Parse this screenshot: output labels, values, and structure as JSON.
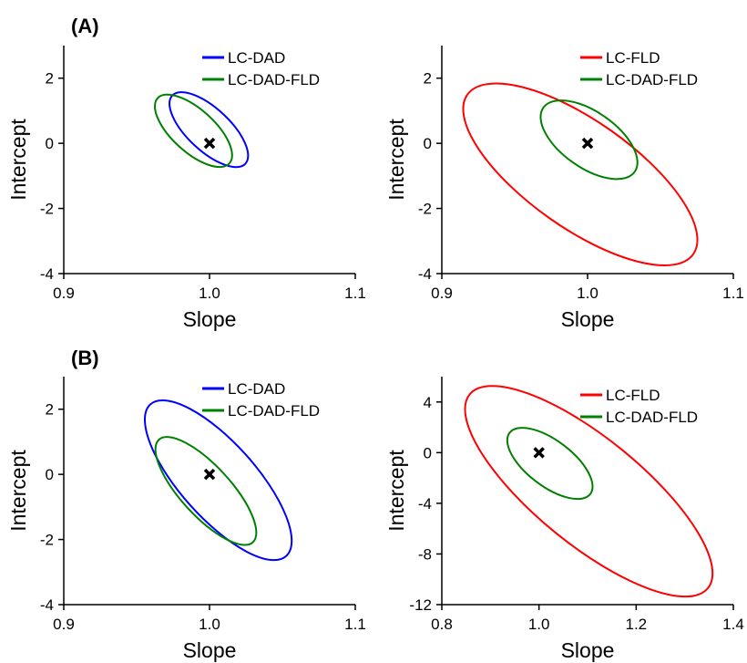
{
  "panel_labels": [
    "(A)",
    "(B)"
  ],
  "chart_data": [
    {
      "type": "ellipse",
      "panel": "(A)",
      "xlabel": "Slope",
      "ylabel": "Intercept",
      "xlim": [
        0.9,
        1.1
      ],
      "ylim": [
        -4,
        3
      ],
      "xticks": [
        "0.9",
        "1.0",
        "1.1"
      ],
      "yticks": [
        "-4",
        "-2",
        "0",
        "2"
      ],
      "legend_position": "top-right",
      "center_marker": [
        1.0,
        0.0
      ],
      "series": [
        {
          "name": "LC-DAD",
          "color": "#0000ff",
          "cx": 1.0,
          "cy": 0.42,
          "slope_extent": [
            0.973,
            1.024
          ],
          "intercept_extent": [
            -0.57,
            1.41
          ],
          "tip_a": [
            0.976,
            1.4
          ],
          "tip_b": [
            1.023,
            -0.56
          ]
        },
        {
          "name": "LC-DAD-FLD",
          "color": "#008000",
          "cx": 0.993,
          "cy": 0.35,
          "slope_extent": [
            0.963,
            1.013
          ],
          "intercept_extent": [
            -0.55,
            1.36
          ],
          "tip_a": [
            0.966,
            1.32
          ],
          "tip_b": [
            1.012,
            -0.55
          ]
        }
      ]
    },
    {
      "type": "ellipse",
      "panel": "(A)",
      "xlabel": "Slope",
      "ylabel": "Intercept",
      "xlim": [
        0.9,
        1.1
      ],
      "ylim": [
        -4,
        3
      ],
      "xticks": [
        "0.9",
        "1.0",
        "1.1"
      ],
      "yticks": [
        "-4",
        "-2",
        "0",
        "2"
      ],
      "legend_position": "top-right",
      "center_marker": [
        1.0,
        0.0
      ],
      "series": [
        {
          "name": "LC-FLD",
          "color": "#ff0000",
          "cx": 0.995,
          "cy": -1.03,
          "slope_extent": [
            0.919,
            1.071
          ],
          "intercept_extent": [
            -3.35,
            1.45
          ],
          "tip_a": [
            0.922,
            1.35
          ],
          "tip_b": [
            1.068,
            -3.26
          ]
        },
        {
          "name": "LC-DAD-FLD",
          "color": "#008000",
          "cx": 1.0,
          "cy": 0.13,
          "slope_extent": [
            0.97,
            1.032
          ],
          "intercept_extent": [
            -0.88,
            1.1
          ],
          "tip_a": [
            0.972,
            1.02
          ],
          "tip_b": [
            1.03,
            -0.8
          ]
        }
      ]
    },
    {
      "type": "ellipse",
      "panel": "(B)",
      "xlabel": "Slope",
      "ylabel": "Intercept",
      "xlim": [
        0.9,
        1.1
      ],
      "ylim": [
        -4,
        3
      ],
      "xticks": [
        "0.9",
        "1.0",
        "1.1"
      ],
      "yticks": [
        "-4",
        "-2",
        "0",
        "2"
      ],
      "legend_position": "top-right",
      "center_marker": [
        1.0,
        0.0
      ],
      "series": [
        {
          "name": "LC-DAD",
          "color": "#0000ff",
          "cx": 1.005,
          "cy": -0.25,
          "slope_extent": [
            0.958,
            1.054
          ],
          "intercept_extent": [
            -2.6,
            2.2
          ],
          "tip_a": [
            0.962,
            2.02
          ],
          "tip_b": [
            1.05,
            -2.38
          ]
        },
        {
          "name": "LC-DAD-FLD",
          "color": "#008000",
          "cx": 0.998,
          "cy": -0.43,
          "slope_extent": [
            0.965,
            1.031
          ],
          "intercept_extent": [
            -2.18,
            1.1
          ],
          "tip_a": [
            0.967,
            0.98
          ],
          "tip_b": [
            1.028,
            -2.0
          ]
        }
      ]
    },
    {
      "type": "ellipse",
      "panel": "(B)",
      "xlabel": "Slope",
      "ylabel": "Intercept",
      "xlim": [
        0.8,
        1.4
      ],
      "ylim": [
        -12,
        6
      ],
      "xticks": [
        "0.8",
        "1.0",
        "1.2",
        "1.4"
      ],
      "yticks": [
        "-12",
        "-8",
        "-4",
        "0",
        "4"
      ],
      "legend_position": "top-right",
      "center_marker": [
        1.0,
        0.0
      ],
      "series": [
        {
          "name": "LC-FLD",
          "color": "#ff0000",
          "cx": 1.105,
          "cy": -3.0,
          "slope_extent": [
            0.86,
            1.345
          ],
          "intercept_extent": [
            -10.6,
            4.5
          ],
          "tip_a": [
            0.87,
            4.2
          ],
          "tip_b": [
            1.335,
            -10.3
          ]
        },
        {
          "name": "LC-DAD-FLD",
          "color": "#008000",
          "cx": 1.025,
          "cy": -0.9,
          "slope_extent": [
            0.94,
            1.105
          ],
          "intercept_extent": [
            -3.2,
            1.6
          ],
          "tip_a": [
            0.945,
            1.4
          ],
          "tip_b": [
            1.1,
            -3.1
          ]
        }
      ]
    }
  ]
}
